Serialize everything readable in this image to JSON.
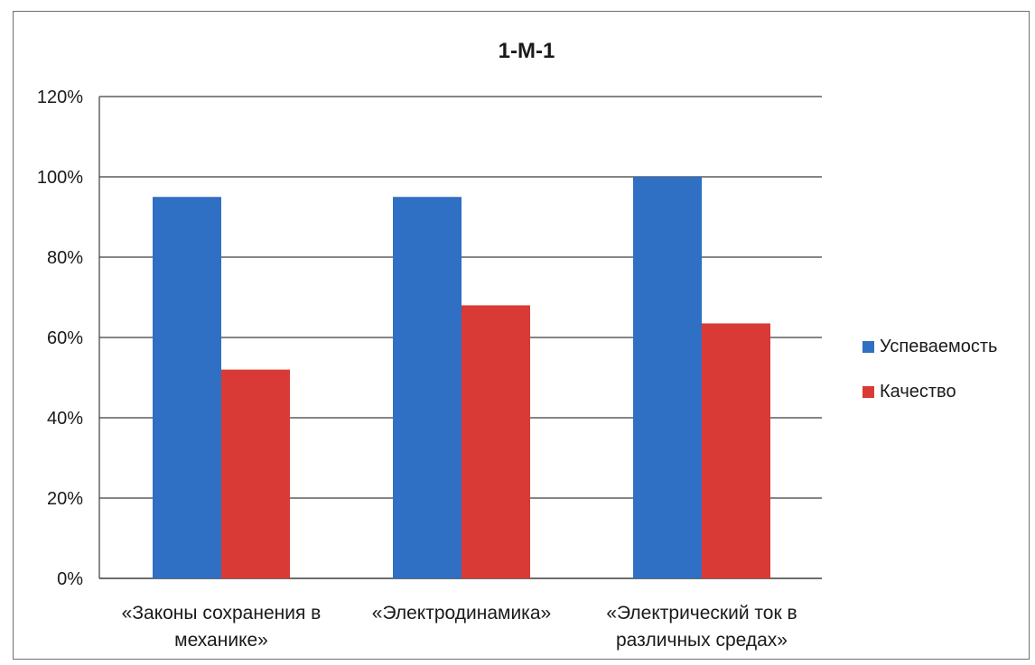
{
  "chart_data": {
    "type": "bar",
    "title": "1-М-1",
    "xlabel": "",
    "ylabel": "",
    "ylim": [
      0,
      120
    ],
    "yticks": [
      "0%",
      "20%",
      "40%",
      "60%",
      "80%",
      "100%",
      "120%"
    ],
    "grid": true,
    "legend_position": "right",
    "categories": [
      [
        "«Законы сохранения в",
        "механике»"
      ],
      [
        "«Электродинамика»"
      ],
      [
        "«Электрический ток в",
        "различных средах»"
      ]
    ],
    "series": [
      {
        "name": "Успеваемость",
        "color": "#2f6fc4",
        "values": [
          95,
          95,
          100
        ]
      },
      {
        "name": "Качество",
        "color": "#d93a35",
        "values": [
          52,
          68,
          63.5
        ]
      }
    ]
  }
}
